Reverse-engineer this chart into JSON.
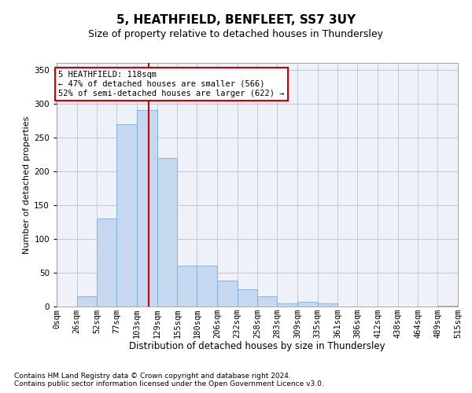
{
  "title1": "5, HEATHFIELD, BENFLEET, SS7 3UY",
  "title2": "Size of property relative to detached houses in Thundersley",
  "xlabel": "Distribution of detached houses by size in Thundersley",
  "ylabel": "Number of detached properties",
  "annotation_line1": "5 HEATHFIELD: 118sqm",
  "annotation_line2": "← 47% of detached houses are smaller (566)",
  "annotation_line3": "52% of semi-detached houses are larger (622) →",
  "footnote1": "Contains HM Land Registry data © Crown copyright and database right 2024.",
  "footnote2": "Contains public sector information licensed under the Open Government Licence v3.0.",
  "bar_edges": [
    0,
    26,
    52,
    77,
    103,
    129,
    155,
    180,
    206,
    232,
    258,
    283,
    309,
    335,
    361,
    386,
    412,
    438,
    464,
    489,
    515
  ],
  "bar_labels": [
    "0sqm",
    "26sqm",
    "52sqm",
    "77sqm",
    "103sqm",
    "129sqm",
    "155sqm",
    "180sqm",
    "206sqm",
    "232sqm",
    "258sqm",
    "283sqm",
    "309sqm",
    "335sqm",
    "361sqm",
    "386sqm",
    "412sqm",
    "438sqm",
    "464sqm",
    "489sqm",
    "515sqm"
  ],
  "bar_heights": [
    0,
    15,
    130,
    270,
    290,
    220,
    60,
    60,
    38,
    25,
    15,
    5,
    7,
    5,
    0,
    0,
    0,
    0,
    0,
    1,
    0
  ],
  "bar_color": "#c5d8f0",
  "bar_edgecolor": "#7aadd4",
  "grid_color": "#c0c8d8",
  "bg_color": "#eef2f8",
  "property_size": 118,
  "vline_color": "#cc0000",
  "ylim": [
    0,
    360
  ],
  "yticks": [
    0,
    50,
    100,
    150,
    200,
    250,
    300,
    350
  ],
  "title1_fontsize": 11,
  "title2_fontsize": 9,
  "xlabel_fontsize": 8.5,
  "ylabel_fontsize": 8,
  "tick_fontsize": 7.5,
  "footnote_fontsize": 6.5,
  "annotation_fontsize": 7.5,
  "annotation_box_color": "#ffffff",
  "annotation_box_edgecolor": "#cc0000"
}
